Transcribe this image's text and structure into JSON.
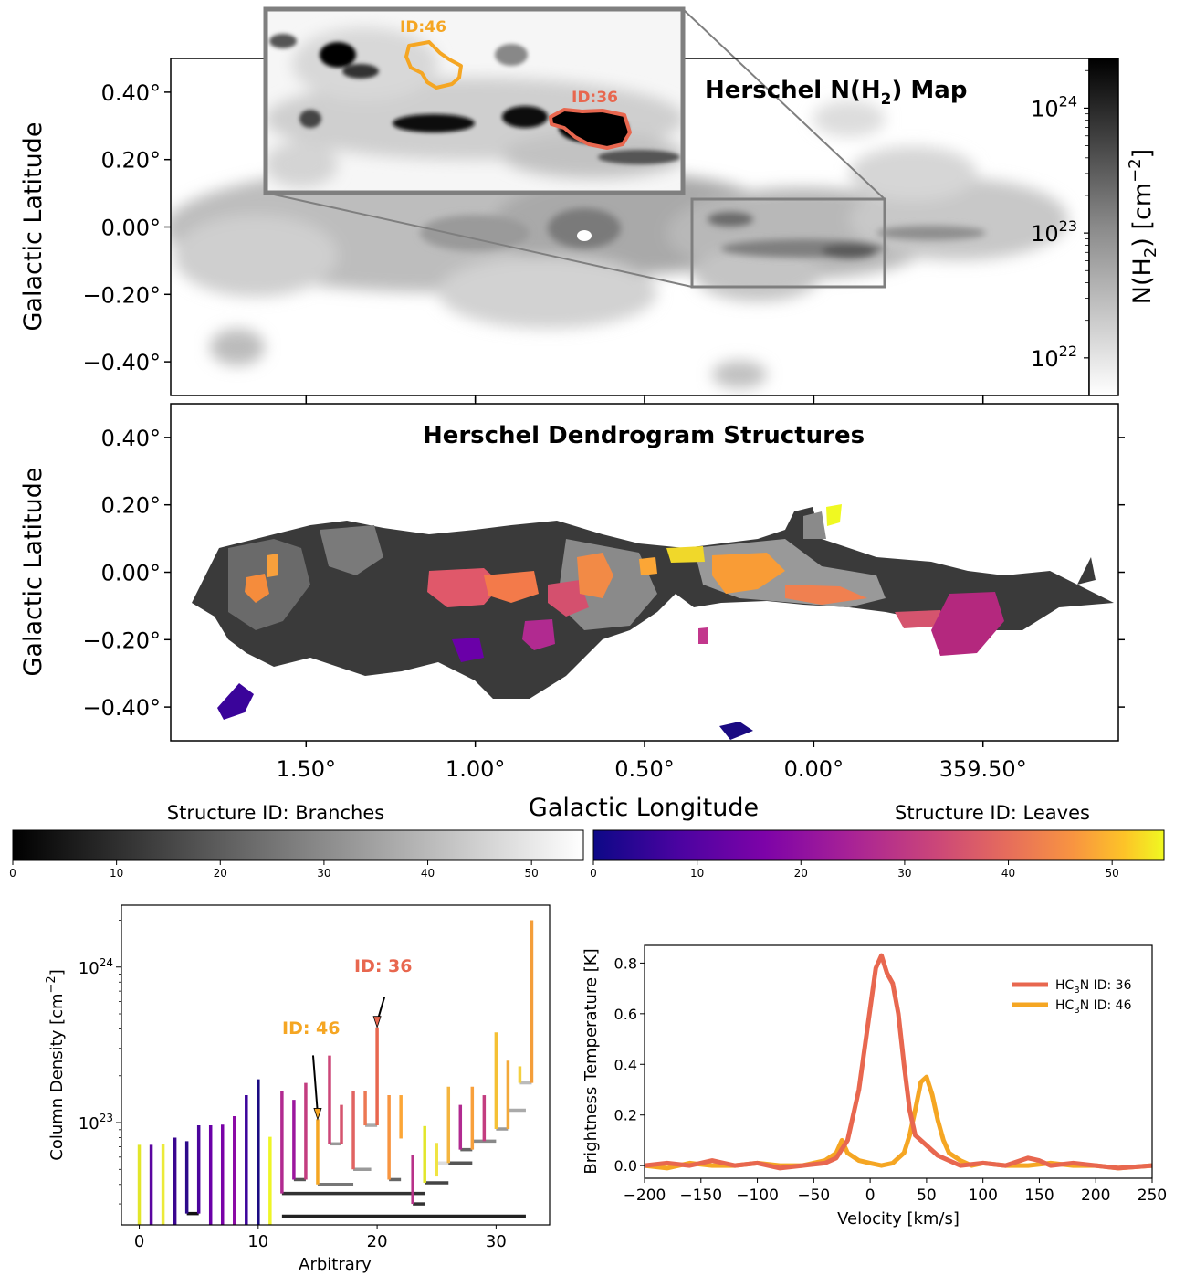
{
  "chart_data": [
    {
      "type": "heatmap",
      "title": "Herschel N(H$_2$) Map",
      "title_text": "Herschel N(H",
      "title_sub": "2",
      "title_end": ") Map",
      "ylabel": "Galactic Latitude",
      "yticks": [
        "0.40°",
        "0.20°",
        "0.00°",
        "−0.20°",
        "−0.40°"
      ],
      "ytick_values": [
        0.4,
        0.2,
        0.0,
        -0.2,
        -0.4
      ],
      "ylim": [
        -0.5,
        0.5
      ],
      "xlim": [
        1.9,
        -0.9
      ],
      "colorbar": {
        "label": "N(H2) [cm−2]",
        "label_main": "N(H",
        "label_sub": "2",
        "label_end": ") [cm",
        "label_sup": "−2",
        "label_close": "]",
        "scale": "log",
        "range": [
          5e+21,
          2.5e+24
        ],
        "ticks": [
          {
            "base": "10",
            "exp": "24",
            "value": 1e+24
          },
          {
            "base": "10",
            "exp": "23",
            "value": 1e+23
          },
          {
            "base": "10",
            "exp": "22",
            "value": 1e+22
          }
        ]
      },
      "inset": {
        "annotations": [
          {
            "label": "ID:46",
            "color": "#f5a623"
          },
          {
            "label": "ID:36",
            "color": "#e8674f"
          }
        ]
      }
    },
    {
      "type": "heatmap",
      "title": "Herschel Dendrogram Structures",
      "ylabel": "Galactic Latitude",
      "xlabel": "Galactic Longitude",
      "yticks": [
        "0.40°",
        "0.20°",
        "0.00°",
        "−0.20°",
        "−0.40°"
      ],
      "ytick_values": [
        0.4,
        0.2,
        0.0,
        -0.2,
        -0.4
      ],
      "xticks": [
        "1.50°",
        "1.00°",
        "0.50°",
        "0.00°",
        "359.50°"
      ],
      "xtick_values": [
        1.5,
        1.0,
        0.5,
        0.0,
        -0.5
      ],
      "ylim": [
        -0.5,
        0.5
      ],
      "xlim": [
        1.9,
        -0.9
      ],
      "colorbars": [
        {
          "label": "Structure ID: Branches",
          "colormap": "gray",
          "range": [
            0,
            55
          ],
          "ticks": [
            "0",
            "10",
            "20",
            "30",
            "40",
            "50"
          ]
        },
        {
          "label": "Structure ID: Leaves",
          "colormap": "plasma",
          "range": [
            0,
            55
          ],
          "ticks": [
            "0",
            "10",
            "20",
            "30",
            "40",
            "50"
          ]
        }
      ]
    },
    {
      "type": "dendrogram",
      "xlabel": "Arbitrary",
      "ylabel": "Column Density [cm−2]",
      "ylabel_main": "Column Density [cm",
      "ylabel_sup": "−2",
      "ylabel_close": "]",
      "yscale": "log",
      "ylim": [
        2.2e+22,
        2.5e+24
      ],
      "xlim": [
        -1.5,
        34.5
      ],
      "xticks": [
        "0",
        "10",
        "20",
        "30"
      ],
      "xtick_values": [
        0,
        10,
        20,
        30
      ],
      "yticks": [
        {
          "base": "10",
          "exp": "24",
          "value": 1e+24
        },
        {
          "base": "10",
          "exp": "23",
          "value": 1e+23
        }
      ],
      "annotations": [
        {
          "label": "ID: 36",
          "color": "#e8674f",
          "x": 20,
          "y": 4.1e+23
        },
        {
          "label": "ID: 46",
          "color": "#f5a623",
          "x": 15,
          "y": 1.05e+23
        }
      ],
      "leaves": [
        {
          "x": 0,
          "top": 7.2e+22,
          "base": 2.2e+22,
          "color": "#e2e62a"
        },
        {
          "x": 1,
          "top": 7.2e+22,
          "base": 2.2e+22,
          "color": "#5a05a0"
        },
        {
          "x": 2,
          "top": 7.3e+22,
          "base": 2.2e+22,
          "color": "#ecea3a"
        },
        {
          "x": 3,
          "top": 8e+22,
          "base": 2.2e+22,
          "color": "#3a0590"
        },
        {
          "x": 4,
          "top": 7.6e+22,
          "base": 2.6e+22,
          "color": "#2d0a8a"
        },
        {
          "x": 5,
          "top": 9.6e+22,
          "base": 2.6e+22,
          "color": "#4a049c"
        },
        {
          "x": 6,
          "top": 9.6e+22,
          "base": 2.2e+22,
          "color": "#6a00a8"
        },
        {
          "x": 7,
          "top": 9.7e+22,
          "base": 2.2e+22,
          "color": "#7a02a8"
        },
        {
          "x": 8,
          "top": 1.1e+23,
          "base": 2.2e+22,
          "color": "#8b0aa5"
        },
        {
          "x": 9,
          "top": 1.5e+23,
          "base": 2.2e+22,
          "color": "#3c049b"
        },
        {
          "x": 10,
          "top": 1.9e+23,
          "base": 2.2e+22,
          "color": "#1a0a82"
        },
        {
          "x": 11,
          "top": 8.1e+22,
          "base": 2.2e+22,
          "color": "#eef527"
        },
        {
          "x": 12,
          "top": 1.6e+23,
          "base": 3.5e+22,
          "color": "#b12a90"
        },
        {
          "x": 13,
          "top": 1.4e+23,
          "base": 4.3e+22,
          "color": "#9c179e"
        },
        {
          "x": 14,
          "top": 1.8e+23,
          "base": 4.3e+22,
          "color": "#c33d80"
        },
        {
          "x": 15,
          "top": 1.05e+23,
          "base": 4e+22,
          "color": "#f5a623"
        },
        {
          "x": 16,
          "top": 2.7e+23,
          "base": 7.3e+22,
          "color": "#cc4778"
        },
        {
          "x": 17,
          "top": 1.3e+23,
          "base": 7.3e+22,
          "color": "#d5546e"
        },
        {
          "x": 18,
          "top": 1.6e+23,
          "base": 5e+22,
          "color": "#e16462"
        },
        {
          "x": 19,
          "top": 1.6e+23,
          "base": 9.6e+22,
          "color": "#ec7853"
        },
        {
          "x": 20,
          "top": 4.1e+23,
          "base": 9.6e+22,
          "color": "#e8674f"
        },
        {
          "x": 21,
          "top": 1.5e+23,
          "base": 4.3e+22,
          "color": "#f89540"
        },
        {
          "x": 22,
          "top": 1.5e+23,
          "base": 7.9e+22,
          "color": "#fca636"
        },
        {
          "x": 23,
          "top": 6.2e+22,
          "base": 3e+22,
          "color": "#b83289"
        },
        {
          "x": 24,
          "top": 9.5e+22,
          "base": 4.1e+22,
          "color": "#e2e62a"
        },
        {
          "x": 25,
          "top": 7.4e+22,
          "base": 4.5e+22,
          "color": "#f0e442"
        },
        {
          "x": 26,
          "top": 1.7e+23,
          "base": 5.5e+22,
          "color": "#f4b53f"
        },
        {
          "x": 27,
          "top": 1.3e+23,
          "base": 6.7e+22,
          "color": "#b12a90"
        },
        {
          "x": 28,
          "top": 1.7e+23,
          "base": 6.7e+22,
          "color": "#f8a03c"
        },
        {
          "x": 29,
          "top": 1.5e+23,
          "base": 7.6e+22,
          "color": "#c33d80"
        },
        {
          "x": 30,
          "top": 3.8e+23,
          "base": 9.1e+22,
          "color": "#f5c034"
        },
        {
          "x": 31,
          "top": 2.5e+23,
          "base": 9.1e+22,
          "color": "#f3a93a"
        },
        {
          "x": 32,
          "top": 2.3e+23,
          "base": 1.8e+23,
          "color": "#f4d03f"
        },
        {
          "x": 33,
          "top": 2e+24,
          "base": 1.8e+23,
          "color": "#f49e3a"
        }
      ],
      "joins": [
        {
          "x1": 4,
          "x2": 5,
          "y": 2.6e+22,
          "color": "#111111"
        },
        {
          "x1": 12,
          "x2": 32.5,
          "y": 2.5e+22,
          "color": "#222222"
        },
        {
          "x1": 12,
          "x2": 24,
          "y": 3.5e+22,
          "color": "#333333"
        },
        {
          "x1": 13,
          "x2": 14,
          "y": 4.3e+22,
          "color": "#555555"
        },
        {
          "x1": 15,
          "x2": 18,
          "y": 4e+22,
          "color": "#777777"
        },
        {
          "x1": 16,
          "x2": 17,
          "y": 7.3e+22,
          "color": "#999999"
        },
        {
          "x1": 18,
          "x2": 19.5,
          "y": 5e+22,
          "color": "#9a9a9a"
        },
        {
          "x1": 19,
          "x2": 20,
          "y": 9.6e+22,
          "color": "#aaaaaa"
        },
        {
          "x1": 21,
          "x2": 22,
          "y": 4.3e+22,
          "color": "#666666"
        },
        {
          "x1": 23,
          "x2": 24,
          "y": 3e+22,
          "color": "#333333"
        },
        {
          "x1": 24,
          "x2": 26,
          "y": 4.1e+22,
          "color": "#444444"
        },
        {
          "x1": 25,
          "x2": 26,
          "y": 5.5e+22,
          "color": "#dddddd"
        },
        {
          "x1": 26,
          "x2": 28,
          "y": 5.5e+22,
          "color": "#555555"
        },
        {
          "x1": 27,
          "x2": 28,
          "y": 6.7e+22,
          "color": "#666666"
        },
        {
          "x1": 28,
          "x2": 30,
          "y": 7.6e+22,
          "color": "#888888"
        },
        {
          "x1": 30,
          "x2": 31,
          "y": 9.1e+22,
          "color": "#999999"
        },
        {
          "x1": 31,
          "x2": 32.5,
          "y": 1.2e+23,
          "color": "#aaaaaa"
        },
        {
          "x1": 32,
          "x2": 33,
          "y": 1.8e+23,
          "color": "#bbbbbb"
        }
      ]
    },
    {
      "type": "line",
      "xlabel": "Velocity [km/s]",
      "ylabel": "Brightness Temperature [K]",
      "xlim": [
        -200,
        250
      ],
      "ylim": [
        -0.05,
        0.87
      ],
      "xticks": [
        "−200",
        "−150",
        "−100",
        "−50",
        "0",
        "50",
        "100",
        "150",
        "200",
        "250"
      ],
      "xtick_values": [
        -200,
        -150,
        -100,
        -50,
        0,
        50,
        100,
        150,
        200,
        250
      ],
      "yticks": [
        "0.0",
        "0.2",
        "0.4",
        "0.6",
        "0.8"
      ],
      "ytick_values": [
        0.0,
        0.2,
        0.4,
        0.6,
        0.8
      ],
      "legend_position": "top-right",
      "series": [
        {
          "name": "HC3N ID: 36",
          "name_main": "HC",
          "name_sub": "3",
          "name_end": "N ID: 36",
          "color": "#e8674f",
          "x": [
            -200,
            -180,
            -160,
            -140,
            -120,
            -100,
            -80,
            -60,
            -40,
            -30,
            -20,
            -10,
            0,
            5,
            10,
            15,
            20,
            25,
            30,
            35,
            40,
            50,
            60,
            70,
            80,
            100,
            120,
            140,
            150,
            160,
            180,
            200,
            220,
            250
          ],
          "y": [
            0.0,
            0.01,
            0.0,
            0.02,
            0.0,
            0.01,
            -0.01,
            0.0,
            0.01,
            0.03,
            0.1,
            0.3,
            0.62,
            0.78,
            0.83,
            0.76,
            0.72,
            0.6,
            0.4,
            0.22,
            0.12,
            0.08,
            0.04,
            0.02,
            0.0,
            0.01,
            0.0,
            0.03,
            0.02,
            0.0,
            0.01,
            0.0,
            -0.01,
            0.0
          ]
        },
        {
          "name": "HC3N ID: 46",
          "name_main": "HC",
          "name_sub": "3",
          "name_end": "N ID: 46",
          "color": "#f5a623",
          "x": [
            -200,
            -180,
            -160,
            -140,
            -120,
            -100,
            -80,
            -60,
            -40,
            -30,
            -25,
            -20,
            -10,
            0,
            10,
            20,
            30,
            35,
            40,
            45,
            50,
            55,
            60,
            65,
            70,
            80,
            90,
            100,
            120,
            140,
            160,
            180,
            200,
            220,
            250
          ],
          "y": [
            0.0,
            -0.01,
            0.01,
            0.0,
            0.0,
            0.01,
            0.0,
            0.0,
            0.02,
            0.05,
            0.1,
            0.05,
            0.02,
            0.01,
            0.0,
            0.01,
            0.05,
            0.12,
            0.22,
            0.33,
            0.35,
            0.28,
            0.18,
            0.1,
            0.05,
            0.02,
            0.0,
            0.01,
            0.0,
            0.0,
            0.01,
            0.0,
            0.0,
            -0.01,
            0.0
          ]
        }
      ]
    }
  ]
}
